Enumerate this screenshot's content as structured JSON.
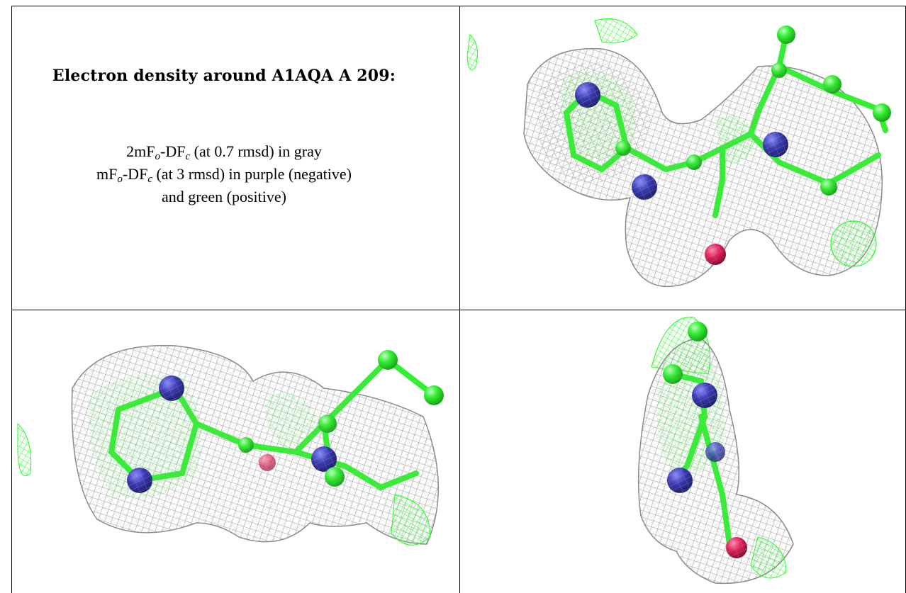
{
  "title": "Electron density around A1AQA A 209:",
  "legend": {
    "line1": {
      "pre": "2mF",
      "sub1": "o",
      "mid": "-DF",
      "sub2": "c",
      "post": " (at 0.7 rmsd) in gray"
    },
    "line2": {
      "pre": "mF",
      "sub1": "o",
      "mid": "-DF",
      "sub2": "c",
      "post": " (at 3 rmsd) in purple (negative)"
    },
    "line3": "and green (positive)"
  },
  "colors": {
    "mesh_gray": "#9a9a9a",
    "mesh_green": "#2bff2b",
    "carbon": "#33ee33",
    "nitrogen": "#3a3ab4",
    "oxygen": "#e0205a",
    "border": "#000000"
  },
  "panels": [
    {
      "view": "top-right"
    },
    {
      "view": "bottom-left"
    },
    {
      "view": "bottom-right"
    }
  ]
}
